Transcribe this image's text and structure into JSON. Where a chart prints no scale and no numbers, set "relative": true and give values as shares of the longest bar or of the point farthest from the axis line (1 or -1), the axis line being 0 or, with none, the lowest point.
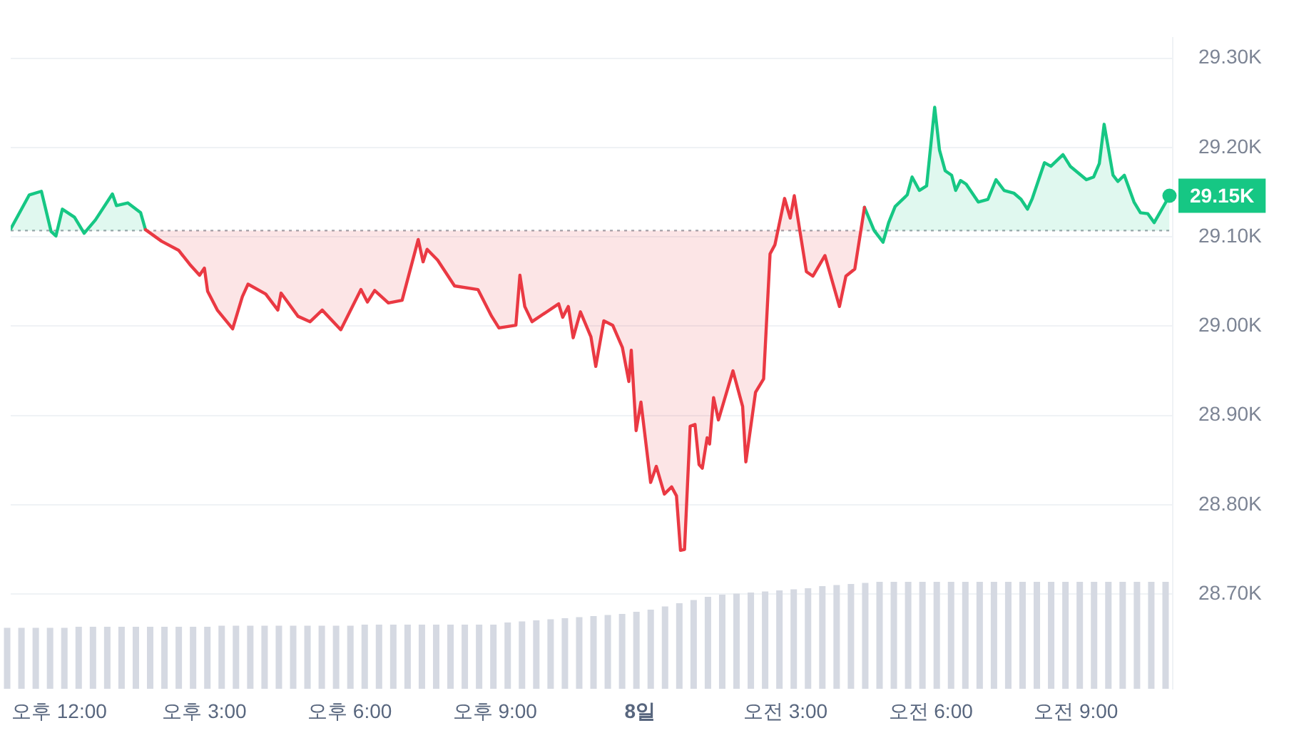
{
  "chart_data": [
    {
      "type": "line",
      "xlim": [
        "--08-07T11:00",
        "--08-08T11:00"
      ],
      "ylim": [
        28594,
        29323
      ],
      "xticks": [
        {
          "value": "--08-07T12:00",
          "label": "오후 12:00"
        },
        {
          "value": "--08-07T15:00",
          "label": "오후 3:00"
        },
        {
          "value": "--08-07T18:00",
          "label": "오후 6:00"
        },
        {
          "value": "--08-07T21:00",
          "label": "오후 9:00"
        },
        {
          "value": "--08-08T00:00",
          "label": "8일"
        },
        {
          "value": "--08-08T03:00",
          "label": "오전 3:00"
        },
        {
          "value": "--08-08T06:00",
          "label": "오전 6:00"
        },
        {
          "value": "--08-08T09:00",
          "label": "오전 9:00"
        }
      ],
      "yticks": [
        {
          "value": 28700,
          "label": "28.70K"
        },
        {
          "value": 28800,
          "label": "28.80K"
        },
        {
          "value": 28900,
          "label": "28.90K"
        },
        {
          "value": 29000,
          "label": "29.00K"
        },
        {
          "value": 29100,
          "label": "29.10K"
        },
        {
          "value": 29200,
          "label": "29.20K"
        },
        {
          "value": 29300,
          "label": "29.30K"
        }
      ],
      "grid": "y",
      "marker": "none",
      "series": [
        {
          "color": "#ea3943",
          "x": [
            "--08-07T13:47",
            "--08-07T14:07",
            "--08-07T14:28",
            "--08-07T14:42",
            "--08-07T14:54",
            "--08-07T15:00",
            "--08-07T15:04",
            "--08-07T15:16",
            "--08-07T15:35",
            "--08-07T15:47",
            "--08-07T15:54",
            "--08-07T16:16",
            "--08-07T16:31",
            "--08-07T16:35",
            "--08-07T16:56",
            "--08-07T17:11",
            "--08-07T17:26",
            "--08-07T17:49",
            "--08-07T18:14",
            "--08-07T18:22",
            "--08-07T18:31",
            "--08-07T18:48",
            "--08-07T19:05",
            "--08-07T19:25",
            "--08-07T19:31",
            "--08-07T19:36",
            "--08-07T19:49",
            "--08-07T20:10",
            "--08-07T20:39",
            "--08-07T20:56",
            "--08-07T21:05",
            "--08-07T21:26",
            "--08-07T21:31",
            "--08-07T21:37",
            "--08-07T21:46",
            "--08-07T22:19",
            "--08-07T22:24",
            "--08-07T22:31",
            "--08-07T22:37",
            "--08-07T22:46",
            "--08-07T22:59",
            "--08-07T23:05",
            "--08-07T23:15",
            "--08-07T23:26",
            "--08-07T23:38",
            "--08-07T23:46",
            "--08-07T23:49",
            "--08-07T23:55",
            "--08-08T00:01",
            "--08-08T00:13",
            "--08-08T00:20",
            "--08-08T00:30",
            "--08-08T00:39",
            "--08-08T00:45",
            "--08-08T00:50",
            "--08-08T00:55",
            "--08-08T01:02",
            "--08-08T01:08",
            "--08-08T01:13",
            "--08-08T01:17",
            "--08-08T01:23",
            "--08-08T01:26",
            "--08-08T01:31",
            "--08-08T01:37",
            "--08-08T01:55",
            "--08-08T02:07",
            "--08-08T02:11",
            "--08-08T02:23",
            "--08-08T02:33",
            "--08-08T02:41",
            "--08-08T02:47",
            "--08-08T02:59",
            "--08-08T03:06",
            "--08-08T03:11",
            "--08-08T03:26",
            "--08-08T03:34",
            "--08-08T03:49",
            "--08-08T04:07",
            "--08-08T04:15",
            "--08-08T04:26",
            "--08-08T04:38"
          ],
          "values": [
            29108,
            29095,
            29085,
            29069,
            29057,
            29065,
            29039,
            29018,
            28997,
            29033,
            29047,
            29036,
            29018,
            29037,
            29011,
            29005,
            29018,
            28996,
            29041,
            29027,
            29040,
            29026,
            29029,
            29097,
            29072,
            29086,
            29074,
            29045,
            29041,
            29011,
            28998,
            29001,
            29057,
            29022,
            29005,
            29025,
            29010,
            29022,
            28987,
            29016,
            28988,
            28955,
            29006,
            29001,
            28976,
            28938,
            28973,
            28883,
            28915,
            28825,
            28843,
            28812,
            28820,
            28810,
            28749,
            28750,
            28888,
            28890,
            28845,
            28841,
            28875,
            28868,
            28920,
            28895,
            28950,
            28910,
            28848,
            28926,
            28941,
            29081,
            29091,
            29143,
            29121,
            29146,
            29061,
            29056,
            29079,
            29022,
            29056,
            29064,
            29133
          ]
        },
        {
          "color": "#16c784",
          "x": [
            "--08-07T11:00",
            "--08-07T11:23",
            "--08-07T11:38",
            "--08-07T11:50",
            "--08-07T11:56",
            "--08-07T12:04",
            "--08-07T12:19",
            "--08-07T12:31",
            "--08-07T12:45",
            "--08-07T13:06",
            "--08-07T13:11",
            "--08-07T13:25",
            "--08-07T13:41",
            "--08-07T13:47",
            "--08-07T14:07",
            "--08-07T20:00",
            "--08-08T02:47",
            "--08-08T02:59",
            "--08-08T03:06",
            "--08-08T03:11",
            "--08-08T03:26",
            "--08-08T04:00",
            "--08-08T04:26",
            "--08-08T04:38",
            "--08-08T04:50",
            "--08-08T05:01",
            "--08-08T05:08",
            "--08-08T05:16",
            "--08-08T05:31",
            "--08-08T05:37",
            "--08-08T05:46",
            "--08-08T05:55",
            "--08-08T06:05",
            "--08-08T06:11",
            "--08-08T06:18",
            "--08-08T06:26",
            "--08-08T06:31",
            "--08-08T06:37",
            "--08-08T06:44",
            "--08-08T06:59",
            "--08-08T07:11",
            "--08-08T07:21",
            "--08-08T07:31",
            "--08-08T07:43",
            "--08-08T07:52",
            "--08-08T08:00",
            "--08-08T08:06",
            "--08-08T08:21",
            "--08-08T08:29",
            "--08-08T08:44",
            "--08-08T08:53",
            "--08-08T09:13",
            "--08-08T09:22",
            "--08-08T09:29",
            "--08-08T09:35",
            "--08-08T09:46",
            "--08-08T09:52",
            "--08-08T10:00",
            "--08-08T10:12",
            "--08-08T10:20",
            "--08-08T10:29",
            "--08-08T10:37",
            "--08-08T10:44",
            "--08-08T10:56"
          ],
          "values": [
            29109,
            29147,
            29151,
            29106,
            29101,
            29131,
            29122,
            29104,
            29119,
            29148,
            29135,
            29138,
            29127,
            29108,
            null,
            null,
            null,
            null,
            null,
            null,
            null,
            null,
            null,
            29133,
            29107,
            29094,
            29116,
            29134,
            29147,
            29167,
            29152,
            29157,
            29245,
            29197,
            29174,
            29169,
            29152,
            29163,
            29159,
            29139,
            29142,
            29164,
            29152,
            29149,
            29142,
            29131,
            29143,
            29183,
            29179,
            29192,
            29179,
            29164,
            29167,
            29182,
            29226,
            29169,
            29162,
            29169,
            29139,
            29127,
            29126,
            29116,
            29127,
            29146
          ]
        }
      ],
      "ref_lines": [
        {
          "axis": "y",
          "value": 29107,
          "color": "#a0a4ac",
          "line_style": "dotted"
        }
      ],
      "annotations": [
        {
          "text": "29.15K",
          "x": "--08-08T10:56",
          "y": 29146
        }
      ]
    },
    {
      "type": "bar",
      "relative": true,
      "color": "#d5d9e2",
      "categories": [
        null,
        null,
        null,
        null,
        null,
        null,
        null,
        null,
        null,
        null,
        null,
        null,
        null,
        null,
        null,
        null,
        null,
        null,
        null,
        null,
        null,
        null,
        null,
        null,
        null,
        null,
        null,
        null,
        null,
        null,
        null,
        null,
        null,
        null,
        null,
        null,
        null,
        null,
        null,
        null,
        null,
        null,
        null,
        null,
        null,
        null,
        null,
        null,
        null,
        null,
        null,
        null,
        null,
        null,
        null,
        null,
        null,
        null,
        null,
        null,
        null,
        null,
        null,
        null,
        null,
        null,
        null,
        null,
        null,
        null,
        null,
        null,
        null,
        null,
        null,
        null,
        null,
        null,
        null,
        null,
        null,
        null
      ],
      "values": [
        0.57,
        0.57,
        0.57,
        0.57,
        0.57,
        0.58,
        0.58,
        0.58,
        0.58,
        0.58,
        0.58,
        0.58,
        0.58,
        0.58,
        0.58,
        0.59,
        0.59,
        0.59,
        0.59,
        0.59,
        0.59,
        0.59,
        0.59,
        0.59,
        0.59,
        0.6,
        0.6,
        0.6,
        0.6,
        0.6,
        0.6,
        0.6,
        0.6,
        0.6,
        0.6,
        0.62,
        0.63,
        0.64,
        0.65,
        0.66,
        0.67,
        0.68,
        0.69,
        0.7,
        0.72,
        0.74,
        0.77,
        0.8,
        0.83,
        0.86,
        0.88,
        0.89,
        0.9,
        0.91,
        0.92,
        0.93,
        0.94,
        0.96,
        0.97,
        0.98,
        0.99,
        1,
        1,
        1,
        1,
        1,
        1,
        1,
        1,
        1,
        1,
        1,
        1,
        1,
        1,
        1,
        1,
        1,
        1,
        1,
        1,
        1
      ]
    }
  ]
}
